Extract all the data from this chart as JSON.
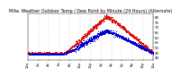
{
  "title": "Milw. Weather Outdoor Temp / Dew Point by Minute (24 Hours) (Alternate)",
  "title_fontsize": 3.5,
  "bg_color": "#ffffff",
  "plot_bg_color": "#ffffff",
  "grid_color": "#aaaaaa",
  "temp_color": "#dd1111",
  "dew_color": "#0000cc",
  "ylim": [
    38,
    84
  ],
  "xlim": [
    0,
    1440
  ],
  "xtick_positions": [
    0,
    120,
    240,
    360,
    480,
    600,
    720,
    840,
    960,
    1080,
    1200,
    1320,
    1440
  ],
  "xtick_labels": [
    "12a",
    "2a",
    "4a",
    "6a",
    "8a",
    "10a",
    "12p",
    "2p",
    "4p",
    "6p",
    "8p",
    "10p",
    "12a"
  ],
  "xtick_fontsize": 2.8,
  "ytick_positions": [
    40,
    45,
    50,
    55,
    60,
    65,
    70,
    75,
    80
  ],
  "ytick_labels": [
    "40",
    "45",
    "50",
    "55",
    "60",
    "65",
    "70",
    "75",
    "80"
  ],
  "ytick_fontsize": 2.8,
  "n_points": 1440,
  "seed": 42
}
